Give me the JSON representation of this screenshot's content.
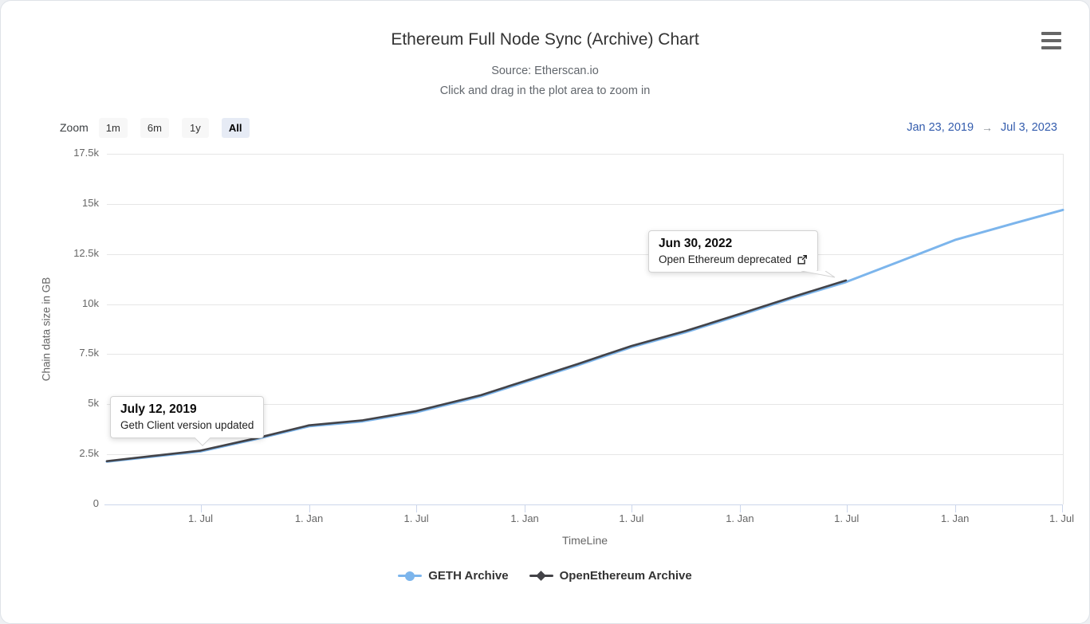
{
  "toolbar": {
    "zoom_label": "Zoom",
    "buttons": [
      {
        "label": "1m",
        "selected": false
      },
      {
        "label": "6m",
        "selected": false
      },
      {
        "label": "1y",
        "selected": false
      },
      {
        "label": "All",
        "selected": true
      }
    ],
    "range_from": "Jan 23, 2019",
    "range_arrow": "→",
    "range_to": "Jul 3, 2023"
  },
  "chart_data": {
    "type": "line",
    "title": "Ethereum Full Node Sync (Archive) Chart",
    "subtitle": [
      "Source: Etherscan.io",
      "Click and drag in the plot area to zoom in"
    ],
    "xlabel": "TimeLine",
    "ylabel": "Chain data size in GB",
    "x_range": [
      "2019-01-23",
      "2023-07-03"
    ],
    "ylim": [
      0,
      17500
    ],
    "grid": "horizontal-only",
    "legend_position": "bottom",
    "y_ticks": [
      {
        "v": 0,
        "label": "0"
      },
      {
        "v": 2500,
        "label": "2.5k"
      },
      {
        "v": 5000,
        "label": "5k"
      },
      {
        "v": 7500,
        "label": "7.5k"
      },
      {
        "v": 10000,
        "label": "10k"
      },
      {
        "v": 12500,
        "label": "12.5k"
      },
      {
        "v": 15000,
        "label": "15k"
      },
      {
        "v": 17500,
        "label": "17.5k"
      }
    ],
    "x_ticks": [
      {
        "d": "2019-07-01",
        "label": "1. Jul"
      },
      {
        "d": "2020-01-01",
        "label": "1. Jan"
      },
      {
        "d": "2020-07-01",
        "label": "1. Jul"
      },
      {
        "d": "2021-01-01",
        "label": "1. Jan"
      },
      {
        "d": "2021-07-01",
        "label": "1. Jul"
      },
      {
        "d": "2022-01-01",
        "label": "1. Jan"
      },
      {
        "d": "2022-07-01",
        "label": "1. Jul"
      },
      {
        "d": "2023-01-01",
        "label": "1. Jan"
      },
      {
        "d": "2023-07-01",
        "label": "1. Jul"
      }
    ],
    "series": [
      {
        "name": "GETH Archive",
        "color": "#7cb5ec",
        "marker": "circle",
        "stroke_width": 3,
        "points": [
          [
            "2019-01-23",
            2140
          ],
          [
            "2019-04-01",
            2360
          ],
          [
            "2019-07-01",
            2650
          ],
          [
            "2019-10-01",
            3250
          ],
          [
            "2020-01-01",
            3900
          ],
          [
            "2020-04-01",
            4150
          ],
          [
            "2020-07-01",
            4600
          ],
          [
            "2020-10-19",
            5400
          ],
          [
            "2021-01-01",
            6100
          ],
          [
            "2021-04-01",
            6950
          ],
          [
            "2021-07-01",
            7850
          ],
          [
            "2021-10-01",
            8600
          ],
          [
            "2022-01-01",
            9450
          ],
          [
            "2022-04-01",
            10300
          ],
          [
            "2022-06-30",
            11100
          ],
          [
            "2022-10-01",
            12150
          ],
          [
            "2023-01-01",
            13200
          ],
          [
            "2023-04-01",
            13950
          ],
          [
            "2023-07-03",
            14700
          ]
        ]
      },
      {
        "name": "OpenEthereum Archive",
        "color": "#434348",
        "marker": "diamond",
        "stroke_width": 2.6,
        "points": [
          [
            "2019-01-23",
            2160
          ],
          [
            "2019-04-01",
            2390
          ],
          [
            "2019-07-01",
            2690
          ],
          [
            "2019-10-01",
            3290
          ],
          [
            "2020-01-01",
            3950
          ],
          [
            "2020-04-01",
            4200
          ],
          [
            "2020-07-01",
            4660
          ],
          [
            "2020-10-19",
            5460
          ],
          [
            "2021-01-01",
            6160
          ],
          [
            "2021-04-01",
            7010
          ],
          [
            "2021-07-01",
            7910
          ],
          [
            "2021-10-01",
            8660
          ],
          [
            "2022-01-01",
            9510
          ],
          [
            "2022-04-01",
            10360
          ],
          [
            "2022-06-30",
            11180
          ]
        ]
      }
    ],
    "annotations": [
      {
        "title": "July 12, 2019",
        "text": "Geth Client version updated",
        "date": "2019-07-12",
        "value": 2700,
        "has_link_icon": false
      },
      {
        "title": "Jun 30, 2022",
        "text": "Open Ethereum deprecated",
        "date": "2022-06-30",
        "value": 11180,
        "has_link_icon": true
      }
    ]
  },
  "legend": {
    "items": [
      {
        "label": "GETH Archive",
        "color": "#7cb5ec",
        "marker": "circle"
      },
      {
        "label": "OpenEthereum Archive",
        "color": "#434348",
        "marker": "diamond"
      }
    ]
  },
  "colors": {
    "grid_line": "#e6e6e6",
    "axis_line": "#ccd6eb",
    "tick_label": "#666666",
    "title": "#333333",
    "range_text": "#335cad",
    "selected_button_bg": "#e6ebf5",
    "button_bg": "#f7f7f7"
  }
}
